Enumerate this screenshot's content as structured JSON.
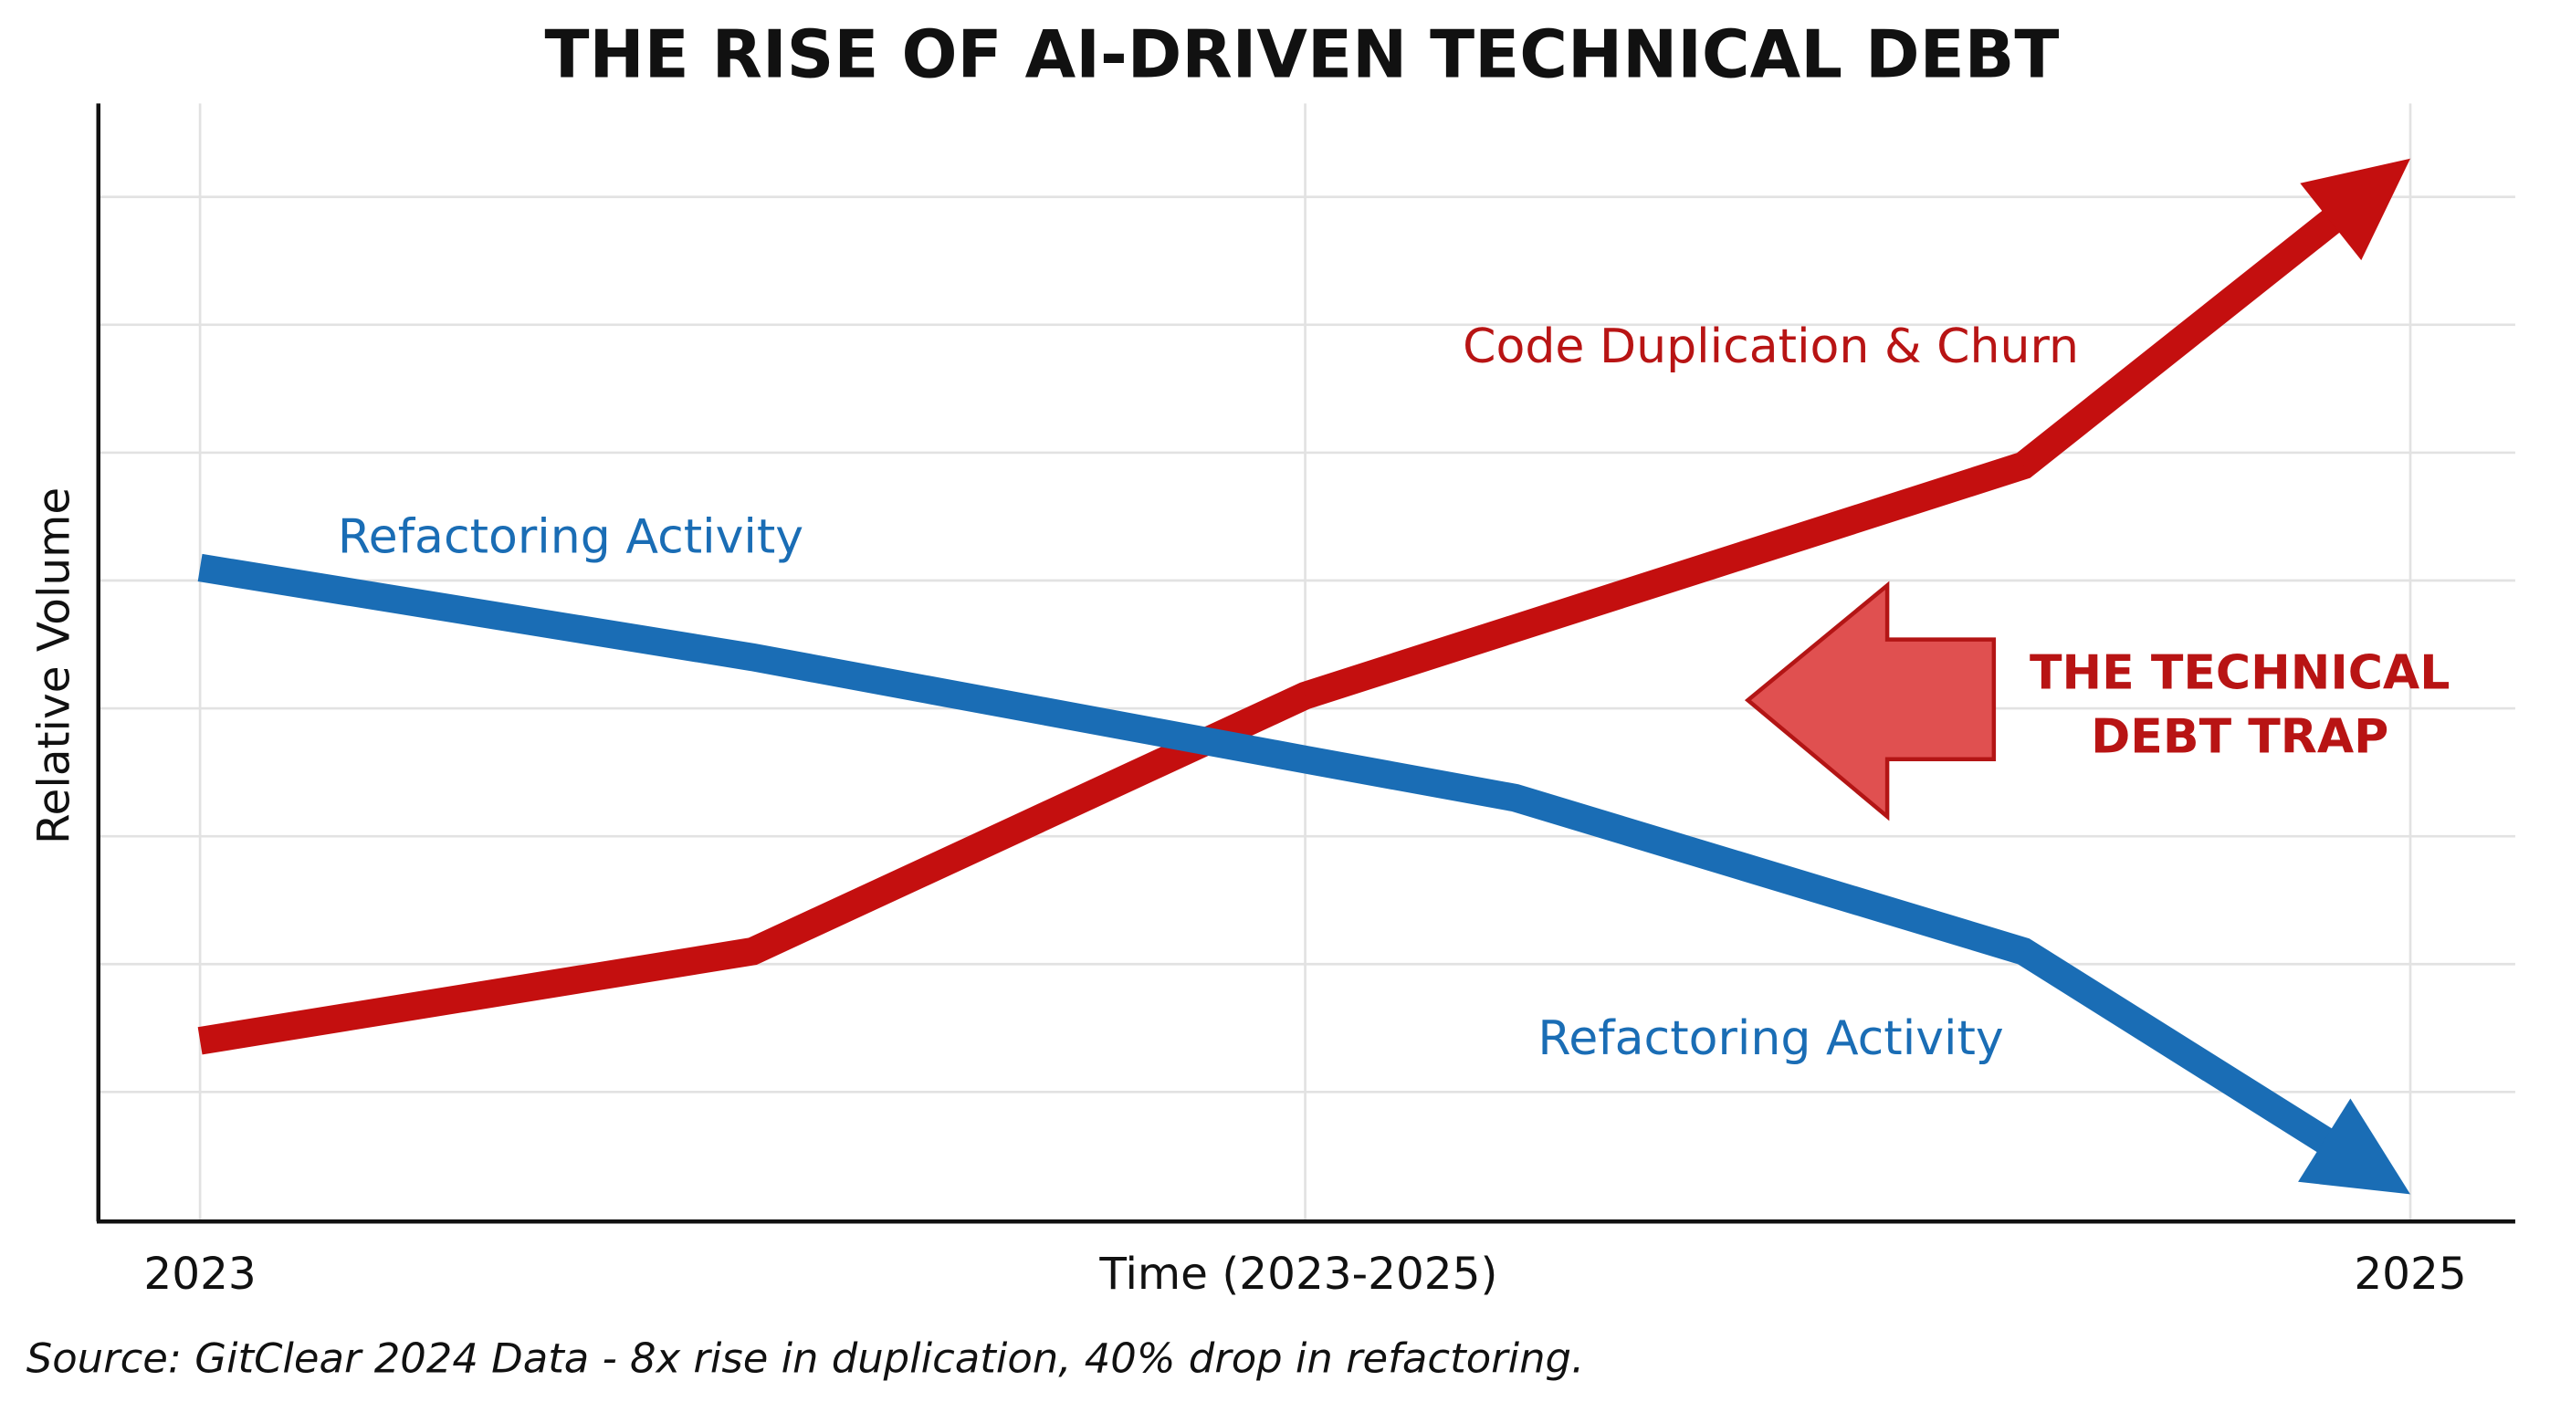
{
  "chart_data": {
    "type": "line",
    "title": "THE RISE OF AI-DRIVEN TECHNICAL DEBT",
    "xlabel": "Time (2023-2025)",
    "ylabel": "Relative Volume",
    "x_ticks": [
      "2023",
      "2025"
    ],
    "xlim": [
      2023,
      2025
    ],
    "ylim": [
      0,
      8.7
    ],
    "grid": true,
    "series": [
      {
        "name": "Code Duplication & Churn",
        "color": "#c40f0f",
        "x": [
          2023,
          2023.5,
          2024,
          2024.65,
          2025
        ],
        "values": [
          1.4,
          2.1,
          4.1,
          5.9,
          8.3
        ]
      },
      {
        "name": "Refactoring Activity",
        "color": "#1a6db5",
        "x": [
          2023,
          2023.5,
          2024,
          2024.19,
          2024.65,
          2025
        ],
        "values": [
          5.1,
          4.4,
          3.6,
          3.3,
          2.1,
          0.2
        ]
      }
    ],
    "labels": {
      "red": "Code Duplication & Churn",
      "blue_top": "Refactoring Activity",
      "blue_bottom": "Refactoring Activity"
    },
    "annotation": {
      "line1": "THE TECHNICAL",
      "line2": "DEBT TRAP",
      "color": "#b81414",
      "arrow_fill": "#e05050"
    },
    "source": "Source: GitClear 2024 Data - 8x rise in duplication, 40% drop in refactoring."
  }
}
